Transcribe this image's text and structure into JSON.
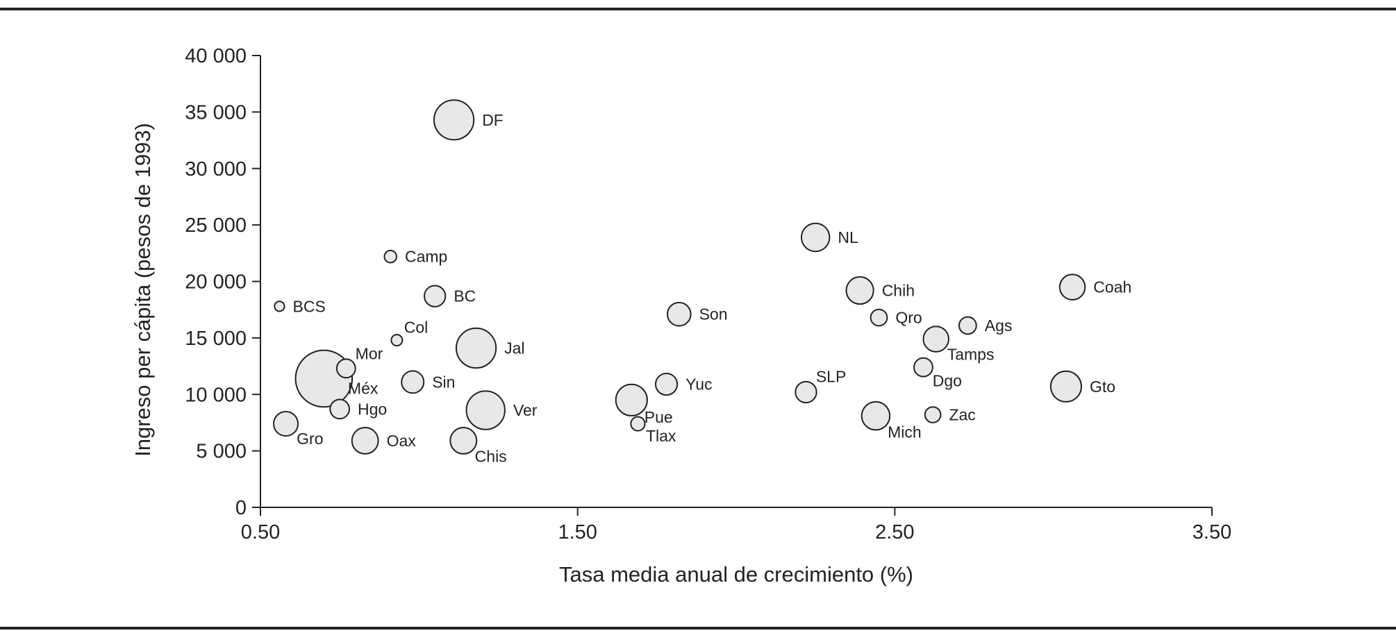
{
  "chart_data": {
    "type": "scatter",
    "title": "",
    "xlabel": "Tasa media anual de crecimiento (%)",
    "ylabel": "Ingreso per cápita (pesos de 1993)",
    "xlim": [
      0.5,
      3.5
    ],
    "ylim": [
      0,
      40000
    ],
    "xticks": [
      "0.50",
      "1.50",
      "2.50",
      "3.50"
    ],
    "yticks": [
      "0",
      "5 000",
      "10 000",
      "15 000",
      "20 000",
      "25 000",
      "30 000",
      "35 000",
      "40 000"
    ],
    "grid": false,
    "bubble_fill": "#e8e8e8",
    "bubble_stroke": "#222222",
    "points": [
      {
        "label": "DF",
        "x": 1.11,
        "y": 34300,
        "size": 3.2,
        "lp": "right"
      },
      {
        "label": "NL",
        "x": 2.25,
        "y": 23900,
        "size": 1.6,
        "lp": "right"
      },
      {
        "label": "Camp",
        "x": 0.91,
        "y": 22200,
        "size": 0.3,
        "lp": "right"
      },
      {
        "label": "Coah",
        "x": 3.06,
        "y": 19500,
        "size": 1.3,
        "lp": "right"
      },
      {
        "label": "Chih",
        "x": 2.39,
        "y": 19200,
        "size": 1.5,
        "lp": "right"
      },
      {
        "label": "BC",
        "x": 1.05,
        "y": 18700,
        "size": 0.9,
        "lp": "right"
      },
      {
        "label": "BCS",
        "x": 0.56,
        "y": 17800,
        "size": 0.2,
        "lp": "right"
      },
      {
        "label": "Son",
        "x": 1.82,
        "y": 17100,
        "size": 1.1,
        "lp": "right"
      },
      {
        "label": "Qro",
        "x": 2.45,
        "y": 16800,
        "size": 0.55,
        "lp": "right"
      },
      {
        "label": "Ags",
        "x": 2.73,
        "y": 16100,
        "size": 0.6,
        "lp": "right"
      },
      {
        "label": "Tamps",
        "x": 2.63,
        "y": 14900,
        "size": 1.3,
        "lp": "below-right"
      },
      {
        "label": "Col",
        "x": 0.93,
        "y": 14800,
        "size": 0.25,
        "lp": "above-right"
      },
      {
        "label": "Jal",
        "x": 1.18,
        "y": 14100,
        "size": 3.2,
        "lp": "right"
      },
      {
        "label": "Mor",
        "x": 0.77,
        "y": 12300,
        "size": 0.7,
        "lp": "above-right"
      },
      {
        "label": "Dgo",
        "x": 2.59,
        "y": 12400,
        "size": 0.7,
        "lp": "below-right"
      },
      {
        "label": "Méx",
        "x": 0.7,
        "y": 11400,
        "size": 6.5,
        "lp": "right-low"
      },
      {
        "label": "Sin",
        "x": 0.98,
        "y": 11100,
        "size": 1.0,
        "lp": "right"
      },
      {
        "label": "Yuc",
        "x": 1.78,
        "y": 10900,
        "size": 0.95,
        "lp": "right"
      },
      {
        "label": "Gto",
        "x": 3.04,
        "y": 10700,
        "size": 1.9,
        "lp": "right"
      },
      {
        "label": "SLP",
        "x": 2.22,
        "y": 10200,
        "size": 0.9,
        "lp": "above-right"
      },
      {
        "label": "Pue",
        "x": 1.67,
        "y": 9500,
        "size": 2.0,
        "lp": "below-right"
      },
      {
        "label": "Hgo",
        "x": 0.75,
        "y": 8700,
        "size": 0.75,
        "lp": "right"
      },
      {
        "label": "Ver",
        "x": 1.21,
        "y": 8600,
        "size": 3.0,
        "lp": "right"
      },
      {
        "label": "Mich",
        "x": 2.44,
        "y": 8100,
        "size": 1.6,
        "lp": "below-right"
      },
      {
        "label": "Zac",
        "x": 2.62,
        "y": 8200,
        "size": 0.5,
        "lp": "right"
      },
      {
        "label": "Gro",
        "x": 0.58,
        "y": 7400,
        "size": 1.2,
        "lp": "below-right"
      },
      {
        "label": "Tlax",
        "x": 1.69,
        "y": 7400,
        "size": 0.4,
        "lp": "below-right"
      },
      {
        "label": "Oax",
        "x": 0.83,
        "y": 5900,
        "size": 1.4,
        "lp": "right"
      },
      {
        "label": "Chis",
        "x": 1.14,
        "y": 5900,
        "size": 1.4,
        "lp": "below-right"
      }
    ]
  }
}
